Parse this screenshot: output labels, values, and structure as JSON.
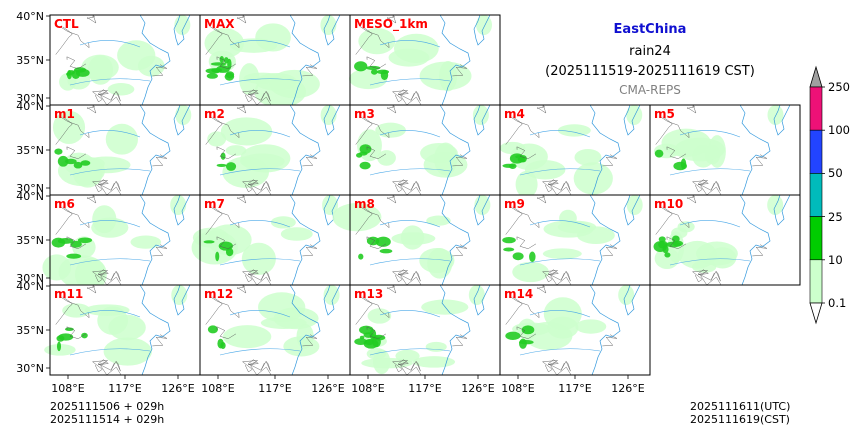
{
  "title": {
    "region": "EastChina",
    "variable": "rain24",
    "period": "(2025111519-2025111619 CST)",
    "source": "CMA-REPS"
  },
  "axes": {
    "y_labels": [
      "40°N",
      "35°N",
      "30°N"
    ],
    "x_labels": [
      "108°E",
      "117°E",
      "126°E"
    ]
  },
  "panels": [
    {
      "label": "CTL",
      "rain": 0.55
    },
    {
      "label": "MAX",
      "rain": 0.95
    },
    {
      "label": "MESO_1km",
      "rain": 0.45
    },
    {
      "label": "m1",
      "rain": 0.5
    },
    {
      "label": "m2",
      "rain": 0.3
    },
    {
      "label": "m3",
      "rain": 0.35
    },
    {
      "label": "m4",
      "rain": 0.55
    },
    {
      "label": "m5",
      "rain": 0.3
    },
    {
      "label": "m6",
      "rain": 0.5
    },
    {
      "label": "m7",
      "rain": 0.4
    },
    {
      "label": "m8",
      "rain": 0.35
    },
    {
      "label": "m9",
      "rain": 0.35
    },
    {
      "label": "m10",
      "rain": 0.8
    },
    {
      "label": "m11",
      "rain": 0.45
    },
    {
      "label": "m12",
      "rain": 0.3
    },
    {
      "label": "m13",
      "rain": 0.9
    },
    {
      "label": "m14",
      "rain": 0.35
    }
  ],
  "colorbar": {
    "levels": [
      "0.1",
      "10",
      "25",
      "50",
      "100",
      "250"
    ],
    "colors": [
      "#ccffcc",
      "#00cc00",
      "#00bbbb",
      "#2244ff",
      "#ee1177",
      "#a0a0a0"
    ]
  },
  "footer": {
    "init_line1": "2025111506  +  029h",
    "init_line2": "2025111514  +  029h",
    "valid_utc": "2025111611(UTC)",
    "valid_cst": "2025111619(CST)"
  }
}
